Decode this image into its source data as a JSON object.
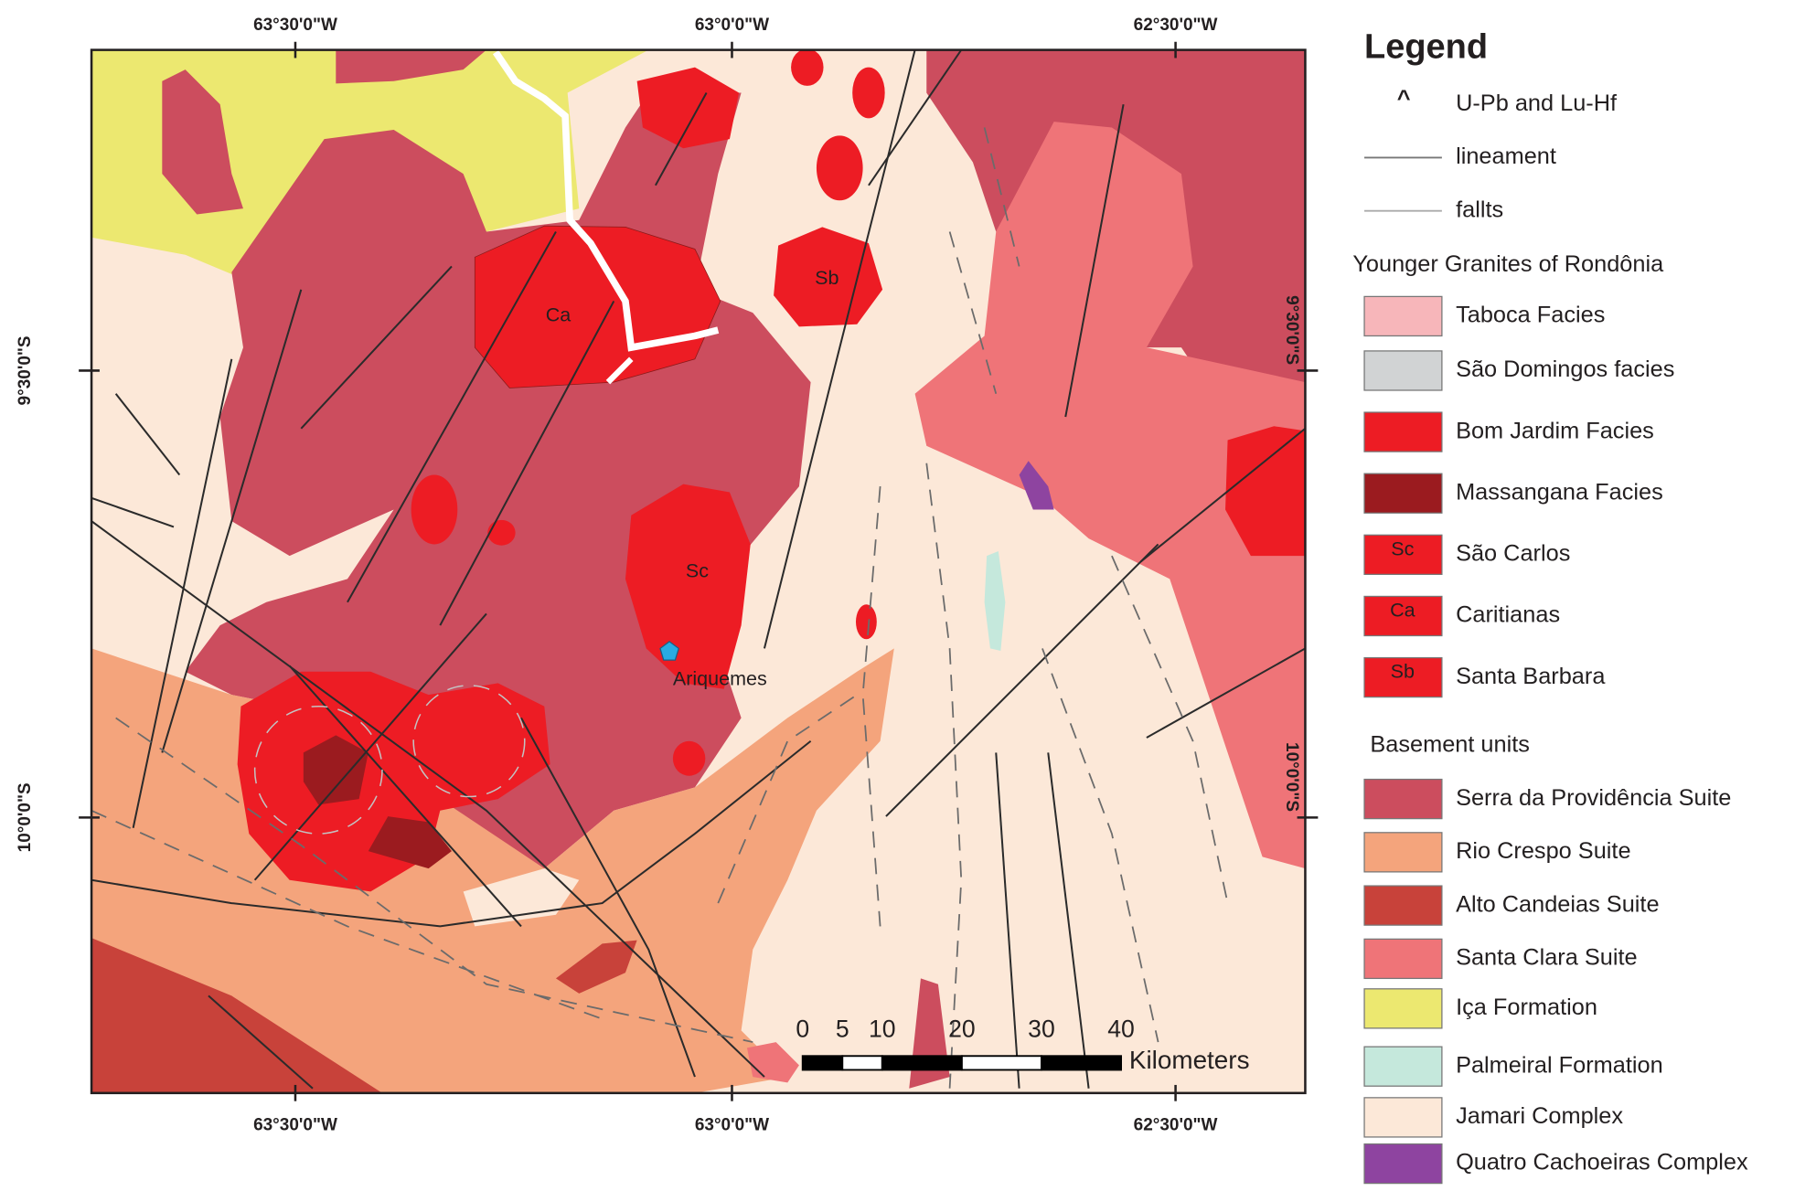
{
  "map": {
    "coordinates": {
      "top": [
        "63°30'0\"W",
        "63°0'0\"W",
        "62°30'0\"W"
      ],
      "bottom": [
        "63°30'0\"W",
        "63°0'0\"W",
        "62°30'0\"W"
      ],
      "left": [
        "9°30'0\"S",
        "10°0'0\"S"
      ],
      "right": [
        "9°30'0\"S",
        "10°0'0\"S"
      ]
    },
    "labels": {
      "ca": "Ca",
      "sb": "Sb",
      "sc": "Sc",
      "town": "Ariquemes"
    },
    "scale_bar": {
      "ticks": [
        0,
        5,
        10,
        20,
        30,
        40
      ],
      "unit": "Kilometers"
    }
  },
  "legend": {
    "title": "Legend",
    "symbols": [
      {
        "symbol": "^",
        "label": "U-Pb and Lu-Hf"
      },
      {
        "label": "lineament"
      },
      {
        "label": "fallts"
      }
    ],
    "groups": [
      {
        "heading": "Younger Granites of Rondônia",
        "items": [
          {
            "label": "Taboca Facies",
            "color": "#f7b6ba"
          },
          {
            "label": "São Domingos facies",
            "color": "#d1d3d4"
          },
          {
            "label": "Bom Jardim Facies",
            "color": "#ed1c24"
          },
          {
            "label": "Massangana Facies",
            "color": "#9b1b1f"
          },
          {
            "code": "Sc",
            "label": "São Carlos",
            "color": "#ed1c24"
          },
          {
            "code": "Ca",
            "label": "Caritianas",
            "color": "#ed1c24"
          },
          {
            "code": "Sb",
            "label": "Santa Barbara",
            "color": "#ed1c24"
          }
        ]
      },
      {
        "heading": "Basement units",
        "items": [
          {
            "label": "Serra da Providência Suite",
            "color": "#cc4d5e"
          },
          {
            "label": "Rio Crespo Suite",
            "color": "#f4a47c"
          },
          {
            "label": "Alto Candeias Suite",
            "color": "#c8423a"
          },
          {
            "label": "Santa Clara Suite",
            "color": "#ef7478"
          },
          {
            "label": "Iça Formation",
            "color": "#ece870"
          },
          {
            "label": "Palmeiral Formation",
            "color": "#c5e8dc"
          },
          {
            "label": "Jamari Complex",
            "color": "#fce8d8"
          },
          {
            "label": "Quatro Cachoeiras Complex",
            "color": "#8e44a0"
          }
        ]
      }
    ]
  }
}
